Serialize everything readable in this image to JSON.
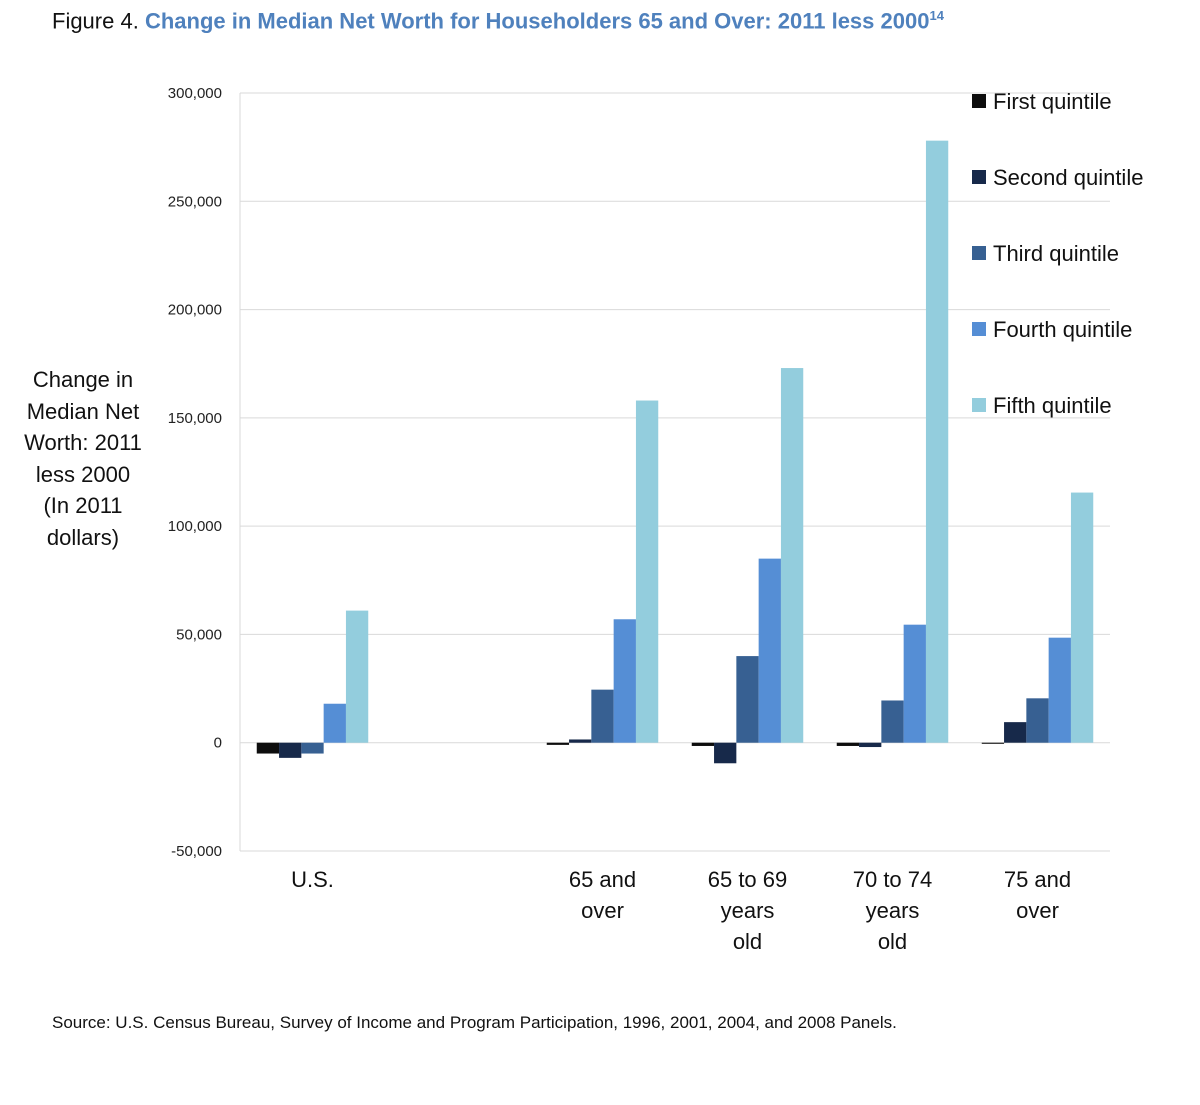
{
  "figure": {
    "label": "Figure 4.",
    "title": "Change in Median Net Worth for Householders 65 and Over: 2011 less 2000",
    "footnote_marker": "14"
  },
  "source": "Source: U.S. Census Bureau, Survey of Income and Program Participation, 1996, 2001, 2004, and 2008 Panels.",
  "chart_data": {
    "type": "bar",
    "ylabel": "Change in Median Net Worth: 2011 less 2000 (In 2011 dollars)",
    "ylabel_lines": [
      "Change in",
      "Median Net",
      "Worth: 2011",
      "less 2000",
      "(In 2011",
      "dollars)"
    ],
    "xlabel": "",
    "ylim": [
      -50000,
      300000
    ],
    "yticks": [
      300000,
      250000,
      200000,
      150000,
      100000,
      50000,
      0,
      -50000
    ],
    "ytick_labels": [
      "300,000",
      "250,000",
      "200,000",
      "150,000",
      "100,000",
      "50,000",
      "0",
      "-50,000"
    ],
    "grid": true,
    "legend_position": "top-right",
    "categories": [
      "U.S.",
      "",
      "65 and over",
      "65 to 69 years old",
      "70 to 74 years old",
      "75 and over"
    ],
    "category_label_lines": [
      [
        "U.S."
      ],
      [],
      [
        "65 and",
        "over"
      ],
      [
        "65 to 69",
        "years",
        "old"
      ],
      [
        "70 to 74",
        "years",
        "old"
      ],
      [
        "75 and",
        "over"
      ]
    ],
    "series": [
      {
        "name": "First quintile",
        "color": "#0d0d0d",
        "values": [
          -5000,
          null,
          -1000,
          -1500,
          -1500,
          -500
        ]
      },
      {
        "name": "Second quintile",
        "color": "#17294a",
        "values": [
          -7000,
          null,
          1500,
          -9500,
          -2000,
          9500
        ]
      },
      {
        "name": "Third quintile",
        "color": "#376092",
        "values": [
          -5000,
          null,
          24500,
          40000,
          19500,
          20500
        ]
      },
      {
        "name": "Fourth quintile",
        "color": "#558ed5",
        "values": [
          18000,
          null,
          57000,
          85000,
          54500,
          48500
        ]
      },
      {
        "name": "Fifth quintile",
        "color": "#93cddd",
        "values": [
          61000,
          null,
          158000,
          173000,
          278000,
          115500
        ]
      }
    ]
  }
}
